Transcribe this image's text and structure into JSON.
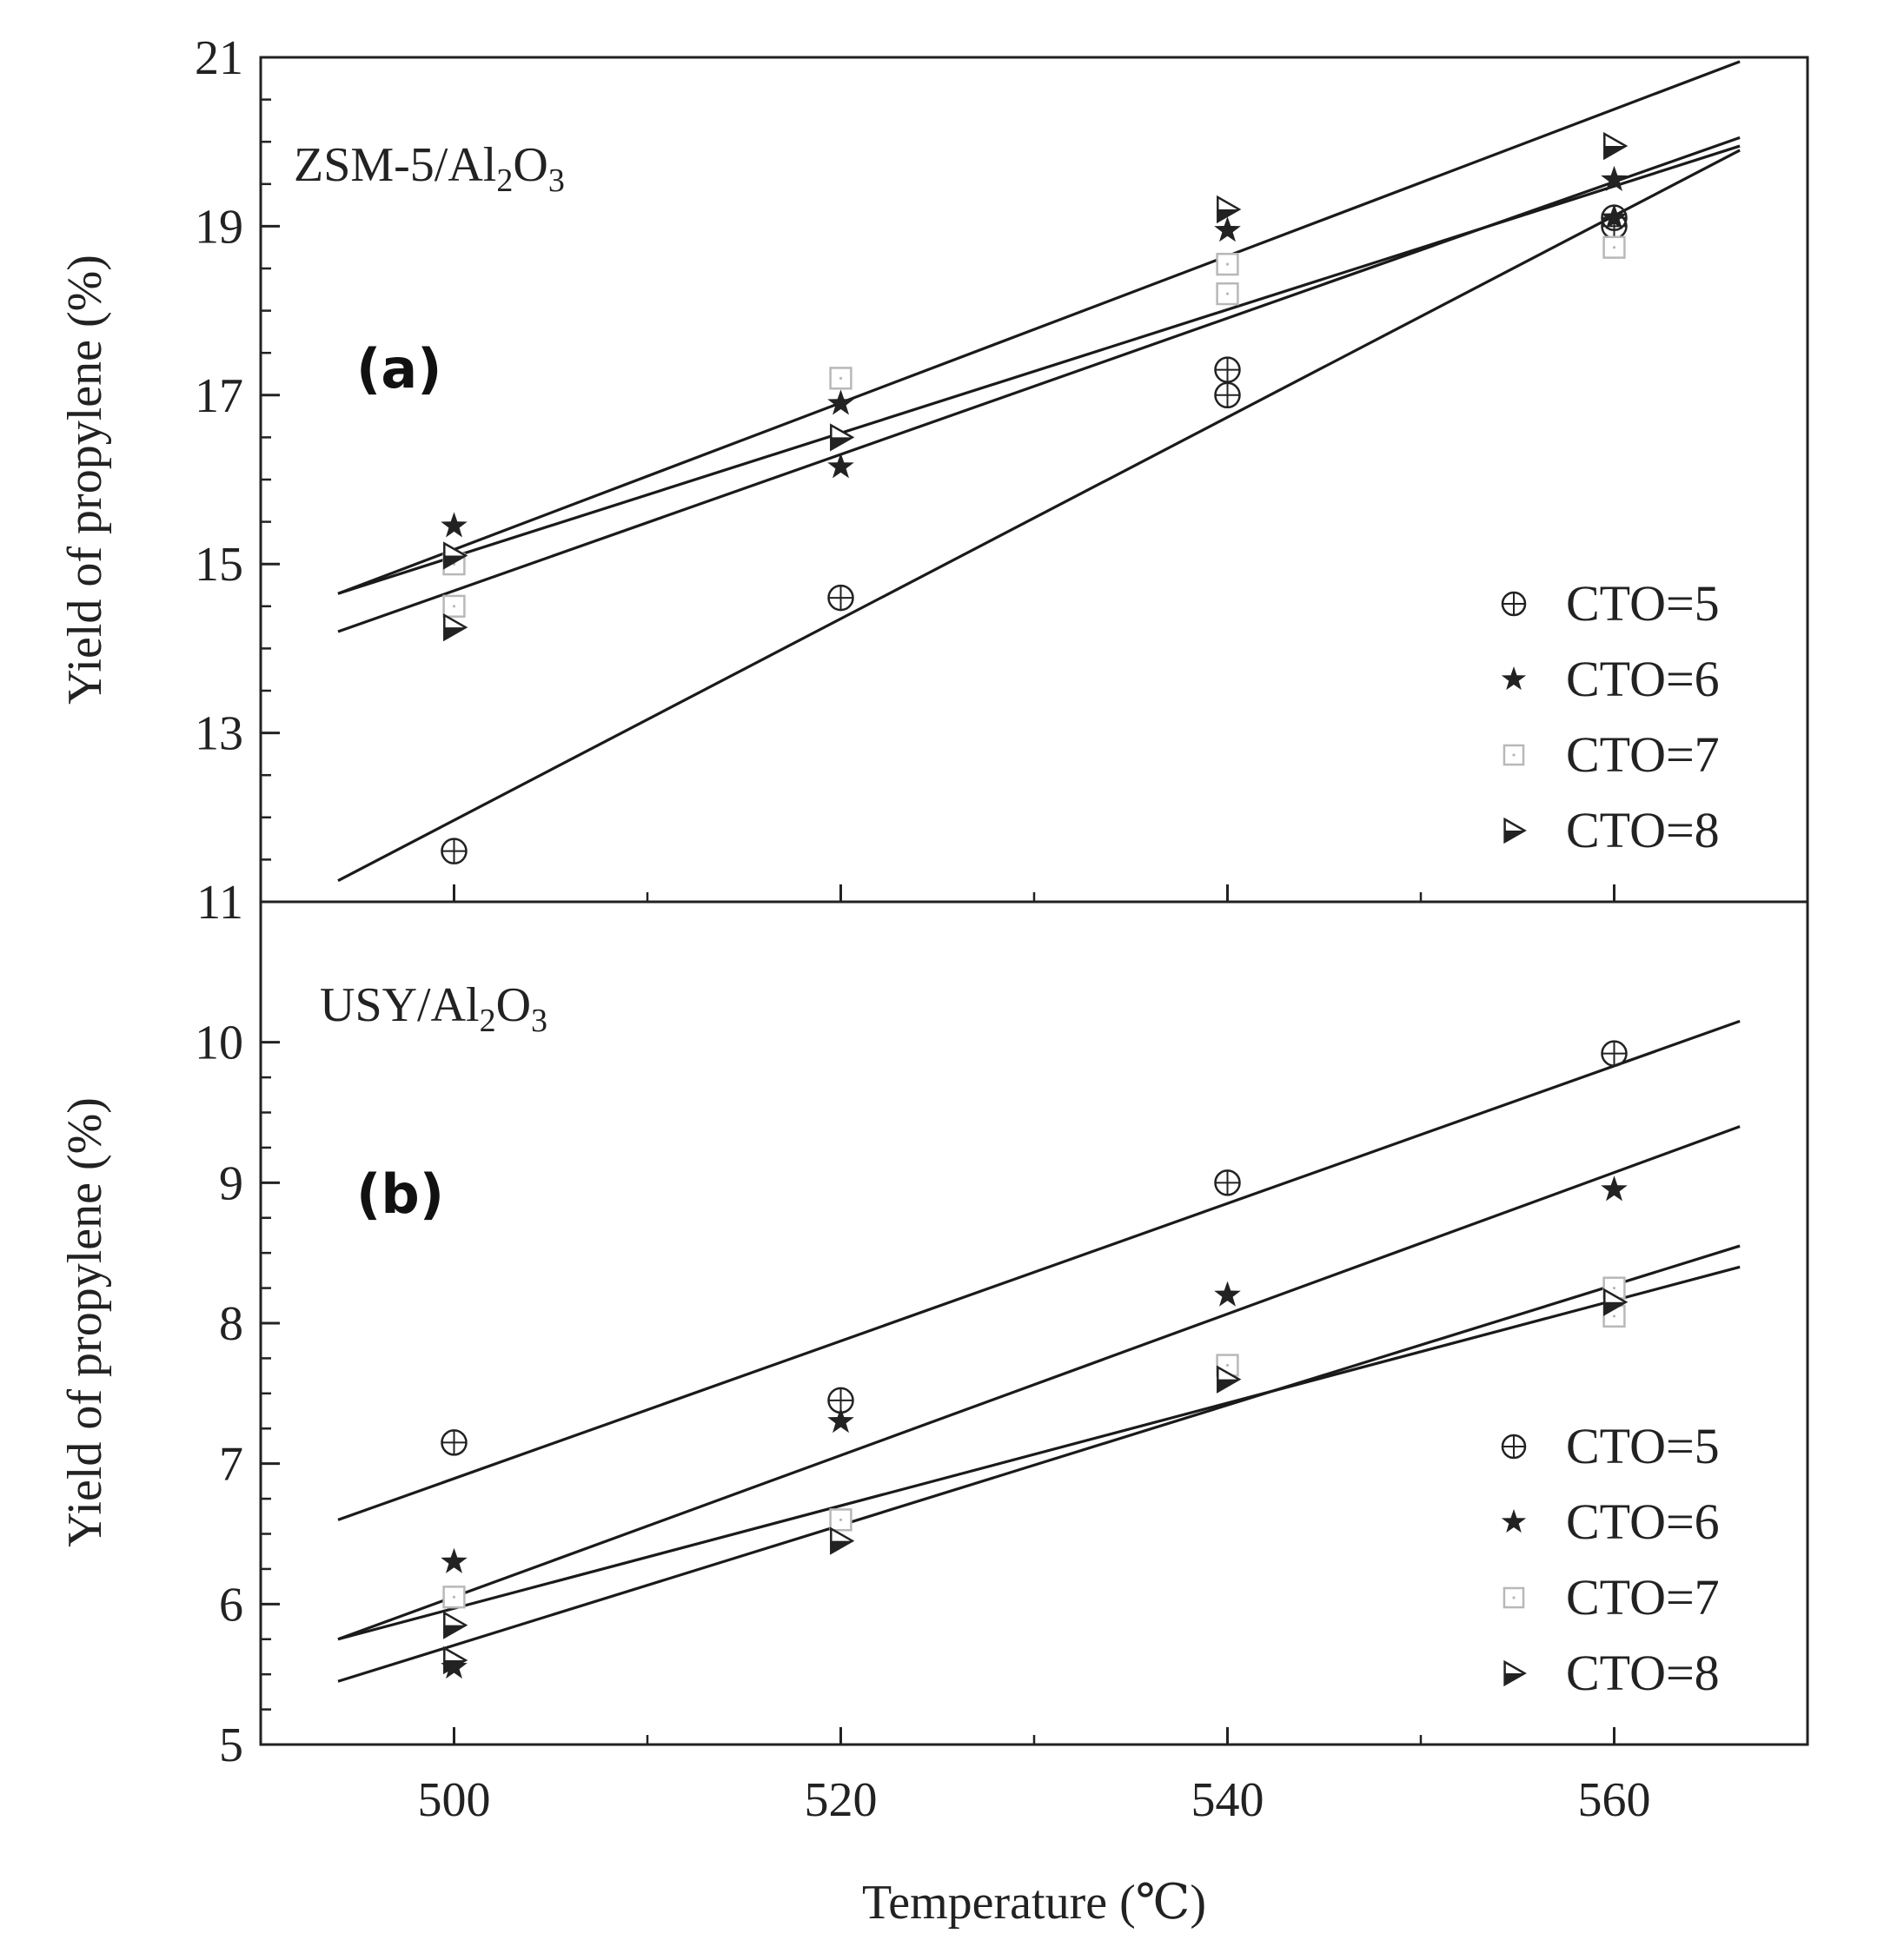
{
  "chart_data": [
    {
      "type": "scatter",
      "panel_label": "(a)",
      "catalyst": {
        "base": "ZSM-5/Al",
        "sub1": "2",
        "mid": "O",
        "sub2": "3"
      },
      "xlabel": "Temperature (℃)",
      "ylabel": "Yield of propylene (%)",
      "xlim": [
        490,
        570
      ],
      "ylim": [
        11,
        21
      ],
      "yticks": [
        "11",
        "13",
        "15",
        "17",
        "19",
        "21"
      ],
      "series": [
        {
          "name": "CTO=5",
          "marker": "circle-plus",
          "x": [
            500,
            520,
            540,
            540,
            560,
            560
          ],
          "y": [
            11.6,
            14.6,
            17.3,
            17.0,
            19.0,
            19.1
          ],
          "fit": [
            [
              494,
              11.25
            ],
            [
              566.5,
              19.9
            ]
          ]
        },
        {
          "name": "CTO=6",
          "marker": "star",
          "x": [
            500,
            520,
            520,
            540,
            560,
            560
          ],
          "y": [
            15.45,
            16.9,
            16.15,
            18.95,
            19.55,
            19.1
          ],
          "fit": [
            [
              494,
              14.65
            ],
            [
              566.5,
              20.95
            ]
          ]
        },
        {
          "name": "CTO=7",
          "marker": "open-square",
          "x": [
            500,
            500,
            520,
            540,
            540,
            560
          ],
          "y": [
            15.0,
            14.5,
            17.2,
            18.55,
            18.2,
            18.75
          ],
          "fit": [
            [
              494,
              14.2
            ],
            [
              566.5,
              20.05
            ]
          ]
        },
        {
          "name": "CTO=8",
          "marker": "right-triangle",
          "x": [
            500,
            500,
            520,
            540,
            560
          ],
          "y": [
            15.1,
            14.25,
            16.5,
            19.2,
            19.95
          ],
          "fit": [
            [
              494,
              14.65
            ],
            [
              566.5,
              19.95
            ]
          ]
        }
      ]
    },
    {
      "type": "scatter",
      "panel_label": "(b)",
      "catalyst": {
        "base": "USY/Al",
        "sub1": "2",
        "mid": "O",
        "sub2": "3"
      },
      "xlabel": "Temperature (℃)",
      "ylabel": "Yield of propylene (%)",
      "xlim": [
        490,
        570
      ],
      "ylim": [
        5,
        11
      ],
      "yticks": [
        "5",
        "6",
        "7",
        "8",
        "9",
        "10"
      ],
      "xticks": [
        "500",
        "520",
        "540",
        "560"
      ],
      "series": [
        {
          "name": "CTO=5",
          "marker": "circle-plus",
          "x": [
            500,
            520,
            540,
            560
          ],
          "y": [
            7.15,
            7.45,
            9.0,
            9.92
          ],
          "fit": [
            [
              494,
              6.6
            ],
            [
              566.5,
              10.15
            ]
          ]
        },
        {
          "name": "CTO=6",
          "marker": "star",
          "x": [
            500,
            500,
            520,
            540,
            560
          ],
          "y": [
            6.3,
            5.55,
            7.3,
            8.2,
            8.95
          ],
          "fit": [
            [
              494,
              5.75
            ],
            [
              566.5,
              9.4
            ]
          ]
        },
        {
          "name": "CTO=7",
          "marker": "open-square",
          "x": [
            500,
            520,
            540,
            560,
            560
          ],
          "y": [
            6.05,
            6.6,
            7.7,
            8.25,
            8.05
          ],
          "fit": [
            [
              494,
              5.75
            ],
            [
              566.5,
              8.4
            ]
          ]
        },
        {
          "name": "CTO=8",
          "marker": "right-triangle",
          "x": [
            500,
            500,
            520,
            540,
            560
          ],
          "y": [
            5.85,
            5.6,
            6.45,
            7.6,
            8.15
          ],
          "fit": [
            [
              494,
              5.45
            ],
            [
              566.5,
              8.55
            ]
          ]
        }
      ]
    }
  ],
  "colors": {
    "axis": "#222222",
    "fit_line": "#1a1a1a",
    "marker_dark": "#222222",
    "marker_light": "#b8b8b8",
    "background": "#ffffff"
  }
}
